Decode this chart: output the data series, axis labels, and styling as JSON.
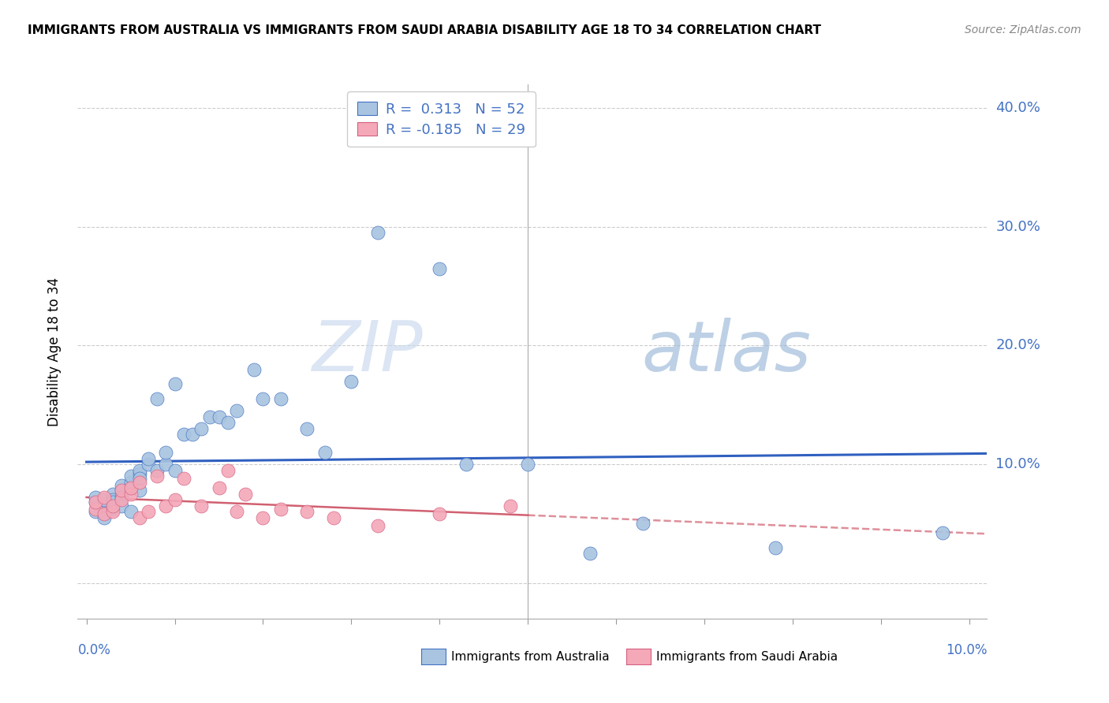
{
  "title": "IMMIGRANTS FROM AUSTRALIA VS IMMIGRANTS FROM SAUDI ARABIA DISABILITY AGE 18 TO 34 CORRELATION CHART",
  "source": "Source: ZipAtlas.com",
  "ylabel": "Disability Age 18 to 34",
  "yaxis_ticks": [
    0.0,
    0.1,
    0.2,
    0.3,
    0.4
  ],
  "yaxis_labels": [
    "",
    "10.0%",
    "20.0%",
    "30.0%",
    "40.0%"
  ],
  "xlim": [
    -0.001,
    0.102
  ],
  "ylim": [
    -0.03,
    0.42
  ],
  "legend_australia": "Immigrants from Australia",
  "legend_saudi": "Immigrants from Saudi Arabia",
  "R_australia": "0.313",
  "N_australia": "52",
  "R_saudi": "-0.185",
  "N_saudi": "29",
  "color_australia": "#a8c4e0",
  "color_saudi": "#f4a8b8",
  "color_australia_dark": "#4472c4",
  "color_saudi_dark": "#d46080",
  "color_trend_australia": "#3060c0",
  "color_trend_saudi": "#d06070",
  "watermark_zip": "ZIP",
  "watermark_atlas": "atlas",
  "australia_x": [
    0.001,
    0.001,
    0.001,
    0.002,
    0.002,
    0.002,
    0.002,
    0.003,
    0.003,
    0.003,
    0.003,
    0.004,
    0.004,
    0.004,
    0.004,
    0.005,
    0.005,
    0.005,
    0.005,
    0.006,
    0.006,
    0.006,
    0.006,
    0.007,
    0.007,
    0.008,
    0.008,
    0.009,
    0.009,
    0.01,
    0.01,
    0.011,
    0.012,
    0.013,
    0.014,
    0.015,
    0.016,
    0.017,
    0.019,
    0.02,
    0.022,
    0.025,
    0.027,
    0.03,
    0.033,
    0.04,
    0.043,
    0.05,
    0.057,
    0.063,
    0.078,
    0.097
  ],
  "australia_y": [
    0.06,
    0.068,
    0.072,
    0.065,
    0.07,
    0.058,
    0.055,
    0.075,
    0.07,
    0.062,
    0.068,
    0.078,
    0.082,
    0.072,
    0.065,
    0.08,
    0.085,
    0.09,
    0.06,
    0.092,
    0.095,
    0.088,
    0.078,
    0.1,
    0.105,
    0.155,
    0.095,
    0.1,
    0.11,
    0.168,
    0.095,
    0.125,
    0.125,
    0.13,
    0.14,
    0.14,
    0.135,
    0.145,
    0.18,
    0.155,
    0.155,
    0.13,
    0.11,
    0.17,
    0.295,
    0.265,
    0.1,
    0.1,
    0.025,
    0.05,
    0.03,
    0.042
  ],
  "saudi_x": [
    0.001,
    0.001,
    0.002,
    0.002,
    0.003,
    0.003,
    0.004,
    0.004,
    0.005,
    0.005,
    0.006,
    0.006,
    0.007,
    0.008,
    0.009,
    0.01,
    0.011,
    0.013,
    0.015,
    0.016,
    0.017,
    0.018,
    0.02,
    0.022,
    0.025,
    0.028,
    0.033,
    0.04,
    0.048
  ],
  "saudi_y": [
    0.062,
    0.068,
    0.058,
    0.072,
    0.06,
    0.065,
    0.07,
    0.078,
    0.075,
    0.08,
    0.055,
    0.085,
    0.06,
    0.09,
    0.065,
    0.07,
    0.088,
    0.065,
    0.08,
    0.095,
    0.06,
    0.075,
    0.055,
    0.062,
    0.06,
    0.055,
    0.048,
    0.058,
    0.065
  ],
  "xticks": [
    0.0,
    0.01,
    0.02,
    0.03,
    0.04,
    0.05,
    0.06,
    0.07,
    0.08,
    0.09,
    0.1
  ]
}
